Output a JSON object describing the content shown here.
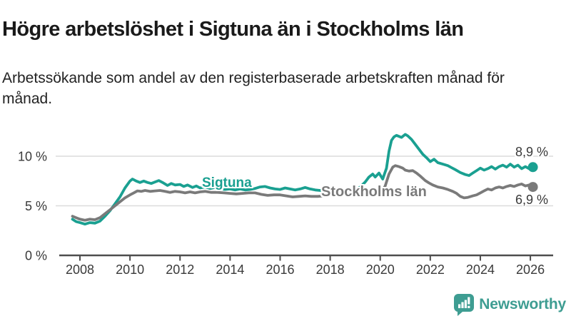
{
  "header": {
    "title": "Högre arbetslöshet i Sigtuna än i Stockholms län",
    "subtitle": "Arbetssökande som andel av den registerbaserade arbetskraften månad för månad."
  },
  "footer": {
    "brand": "Newsworthy",
    "logo_icon": "speech-bubble-bar-chart-icon"
  },
  "colors": {
    "sigtuna_line": "#1aa091",
    "stockholm_line": "#7a7a7a",
    "gridline": "#dcdcdc",
    "axis": "#4d4d4d",
    "tick_text": "#3a3a3a",
    "title_text": "#1a1a1a",
    "brand_teal": "#3e9d92"
  },
  "chart_data": {
    "type": "line",
    "grid": "horizontal-only",
    "legend": "inline-labels",
    "x_axis": {
      "ticks": [
        2008,
        2010,
        2012,
        2014,
        2016,
        2018,
        2020,
        2022,
        2024,
        2026
      ],
      "range": [
        2007.4,
        2026.9
      ]
    },
    "y_axis": {
      "unit": "%",
      "range": [
        0,
        13
      ],
      "ticks": [
        {
          "value": 0,
          "label": "0 %"
        },
        {
          "value": 5,
          "label": "5 %"
        },
        {
          "value": 10,
          "label": "10 %"
        }
      ]
    },
    "series": [
      {
        "name": "Sigtuna",
        "color": "#1aa091",
        "end_label": "8,9 %",
        "end_value": 8.9,
        "points": [
          [
            2007.7,
            3.65
          ],
          [
            2007.85,
            3.4
          ],
          [
            2008.0,
            3.3
          ],
          [
            2008.2,
            3.15
          ],
          [
            2008.4,
            3.3
          ],
          [
            2008.6,
            3.25
          ],
          [
            2008.8,
            3.45
          ],
          [
            2009.0,
            3.95
          ],
          [
            2009.2,
            4.5
          ],
          [
            2009.4,
            5.2
          ],
          [
            2009.6,
            5.9
          ],
          [
            2009.8,
            6.8
          ],
          [
            2010.0,
            7.5
          ],
          [
            2010.1,
            7.7
          ],
          [
            2010.25,
            7.5
          ],
          [
            2010.4,
            7.35
          ],
          [
            2010.55,
            7.5
          ],
          [
            2010.7,
            7.35
          ],
          [
            2010.85,
            7.25
          ],
          [
            2011.0,
            7.4
          ],
          [
            2011.15,
            7.55
          ],
          [
            2011.3,
            7.35
          ],
          [
            2011.5,
            7.05
          ],
          [
            2011.65,
            7.25
          ],
          [
            2011.8,
            7.1
          ],
          [
            2012.0,
            7.15
          ],
          [
            2012.15,
            6.95
          ],
          [
            2012.3,
            7.1
          ],
          [
            2012.5,
            6.85
          ],
          [
            2012.65,
            7.0
          ],
          [
            2012.8,
            6.8
          ],
          [
            2013.0,
            6.9
          ],
          [
            2013.2,
            6.75
          ],
          [
            2013.4,
            6.85
          ],
          [
            2013.6,
            6.7
          ],
          [
            2013.8,
            6.65
          ],
          [
            2014.0,
            6.7
          ],
          [
            2014.2,
            6.6
          ],
          [
            2014.4,
            6.7
          ],
          [
            2014.6,
            6.6
          ],
          [
            2014.8,
            6.65
          ],
          [
            2015.0,
            6.75
          ],
          [
            2015.2,
            6.9
          ],
          [
            2015.4,
            6.95
          ],
          [
            2015.6,
            6.8
          ],
          [
            2015.8,
            6.7
          ],
          [
            2016.0,
            6.65
          ],
          [
            2016.2,
            6.8
          ],
          [
            2016.4,
            6.7
          ],
          [
            2016.6,
            6.6
          ],
          [
            2016.8,
            6.7
          ],
          [
            2017.0,
            6.85
          ],
          [
            2017.2,
            6.7
          ],
          [
            2017.4,
            6.6
          ],
          [
            2017.6,
            6.55
          ],
          [
            2017.8,
            6.5
          ],
          [
            2018.0,
            6.45
          ],
          [
            2018.2,
            6.35
          ],
          [
            2018.4,
            6.4
          ],
          [
            2018.6,
            6.35
          ],
          [
            2018.8,
            6.4
          ],
          [
            2019.0,
            6.5
          ],
          [
            2019.2,
            6.9
          ],
          [
            2019.4,
            7.4
          ],
          [
            2019.55,
            7.9
          ],
          [
            2019.7,
            8.2
          ],
          [
            2019.8,
            7.9
          ],
          [
            2019.95,
            8.3
          ],
          [
            2020.1,
            7.7
          ],
          [
            2020.25,
            8.8
          ],
          [
            2020.35,
            10.5
          ],
          [
            2020.45,
            11.6
          ],
          [
            2020.55,
            11.95
          ],
          [
            2020.65,
            12.1
          ],
          [
            2020.75,
            12.0
          ],
          [
            2020.85,
            11.9
          ],
          [
            2021.0,
            12.2
          ],
          [
            2021.1,
            12.05
          ],
          [
            2021.25,
            11.7
          ],
          [
            2021.4,
            11.2
          ],
          [
            2021.55,
            10.7
          ],
          [
            2021.7,
            10.2
          ],
          [
            2021.85,
            9.85
          ],
          [
            2022.0,
            9.45
          ],
          [
            2022.15,
            9.7
          ],
          [
            2022.3,
            9.35
          ],
          [
            2022.5,
            9.2
          ],
          [
            2022.7,
            9.05
          ],
          [
            2022.85,
            8.85
          ],
          [
            2023.0,
            8.65
          ],
          [
            2023.2,
            8.35
          ],
          [
            2023.4,
            8.15
          ],
          [
            2023.55,
            8.05
          ],
          [
            2023.7,
            8.3
          ],
          [
            2023.85,
            8.55
          ],
          [
            2024.0,
            8.8
          ],
          [
            2024.15,
            8.6
          ],
          [
            2024.3,
            8.75
          ],
          [
            2024.45,
            8.95
          ],
          [
            2024.6,
            8.7
          ],
          [
            2024.75,
            8.95
          ],
          [
            2024.9,
            9.1
          ],
          [
            2025.05,
            8.9
          ],
          [
            2025.2,
            9.2
          ],
          [
            2025.35,
            8.9
          ],
          [
            2025.5,
            9.1
          ],
          [
            2025.65,
            8.75
          ],
          [
            2025.8,
            8.95
          ],
          [
            2025.95,
            8.75
          ],
          [
            2026.1,
            8.9
          ]
        ]
      },
      {
        "name": "Stockholms län",
        "color": "#7a7a7a",
        "end_label": "6,9 %",
        "end_value": 6.9,
        "points": [
          [
            2007.7,
            3.95
          ],
          [
            2007.85,
            3.8
          ],
          [
            2008.0,
            3.65
          ],
          [
            2008.2,
            3.55
          ],
          [
            2008.4,
            3.65
          ],
          [
            2008.6,
            3.6
          ],
          [
            2008.8,
            3.8
          ],
          [
            2009.0,
            4.2
          ],
          [
            2009.2,
            4.6
          ],
          [
            2009.4,
            5.0
          ],
          [
            2009.6,
            5.4
          ],
          [
            2009.8,
            5.8
          ],
          [
            2010.0,
            6.1
          ],
          [
            2010.15,
            6.3
          ],
          [
            2010.3,
            6.5
          ],
          [
            2010.45,
            6.45
          ],
          [
            2010.6,
            6.55
          ],
          [
            2010.8,
            6.45
          ],
          [
            2011.0,
            6.5
          ],
          [
            2011.2,
            6.55
          ],
          [
            2011.4,
            6.45
          ],
          [
            2011.6,
            6.35
          ],
          [
            2011.8,
            6.45
          ],
          [
            2012.0,
            6.4
          ],
          [
            2012.2,
            6.3
          ],
          [
            2012.4,
            6.4
          ],
          [
            2012.6,
            6.3
          ],
          [
            2012.8,
            6.4
          ],
          [
            2013.0,
            6.45
          ],
          [
            2013.25,
            6.35
          ],
          [
            2013.5,
            6.35
          ],
          [
            2013.75,
            6.3
          ],
          [
            2014.0,
            6.25
          ],
          [
            2014.25,
            6.2
          ],
          [
            2014.5,
            6.25
          ],
          [
            2014.75,
            6.3
          ],
          [
            2015.0,
            6.3
          ],
          [
            2015.25,
            6.15
          ],
          [
            2015.5,
            6.05
          ],
          [
            2015.75,
            6.1
          ],
          [
            2016.0,
            6.1
          ],
          [
            2016.25,
            6.0
          ],
          [
            2016.5,
            5.9
          ],
          [
            2016.75,
            5.95
          ],
          [
            2017.0,
            6.0
          ],
          [
            2017.25,
            5.95
          ],
          [
            2017.5,
            5.95
          ],
          [
            2017.75,
            6.0
          ],
          [
            2018.0,
            6.05
          ],
          [
            2018.25,
            6.1
          ],
          [
            2018.5,
            6.15
          ],
          [
            2018.75,
            6.05
          ],
          [
            2019.0,
            6.0
          ],
          [
            2019.25,
            6.05
          ],
          [
            2019.5,
            6.15
          ],
          [
            2019.7,
            6.3
          ],
          [
            2019.9,
            6.5
          ],
          [
            2020.05,
            6.4
          ],
          [
            2020.2,
            7.0
          ],
          [
            2020.35,
            8.2
          ],
          [
            2020.5,
            8.9
          ],
          [
            2020.6,
            9.05
          ],
          [
            2020.75,
            8.95
          ],
          [
            2020.9,
            8.8
          ],
          [
            2021.0,
            8.6
          ],
          [
            2021.15,
            8.5
          ],
          [
            2021.3,
            8.55
          ],
          [
            2021.45,
            8.3
          ],
          [
            2021.6,
            8.0
          ],
          [
            2021.8,
            7.55
          ],
          [
            2021.95,
            7.3
          ],
          [
            2022.1,
            7.1
          ],
          [
            2022.3,
            6.9
          ],
          [
            2022.5,
            6.8
          ],
          [
            2022.7,
            6.65
          ],
          [
            2022.9,
            6.45
          ],
          [
            2023.05,
            6.25
          ],
          [
            2023.2,
            5.95
          ],
          [
            2023.35,
            5.8
          ],
          [
            2023.5,
            5.85
          ],
          [
            2023.7,
            6.0
          ],
          [
            2023.85,
            6.1
          ],
          [
            2024.0,
            6.3
          ],
          [
            2024.15,
            6.5
          ],
          [
            2024.3,
            6.7
          ],
          [
            2024.45,
            6.6
          ],
          [
            2024.6,
            6.8
          ],
          [
            2024.75,
            6.9
          ],
          [
            2024.9,
            6.8
          ],
          [
            2025.05,
            6.95
          ],
          [
            2025.2,
            7.05
          ],
          [
            2025.35,
            6.95
          ],
          [
            2025.5,
            7.1
          ],
          [
            2025.65,
            7.2
          ],
          [
            2025.8,
            7.0
          ],
          [
            2025.95,
            7.1
          ],
          [
            2026.1,
            6.9
          ]
        ]
      }
    ]
  }
}
